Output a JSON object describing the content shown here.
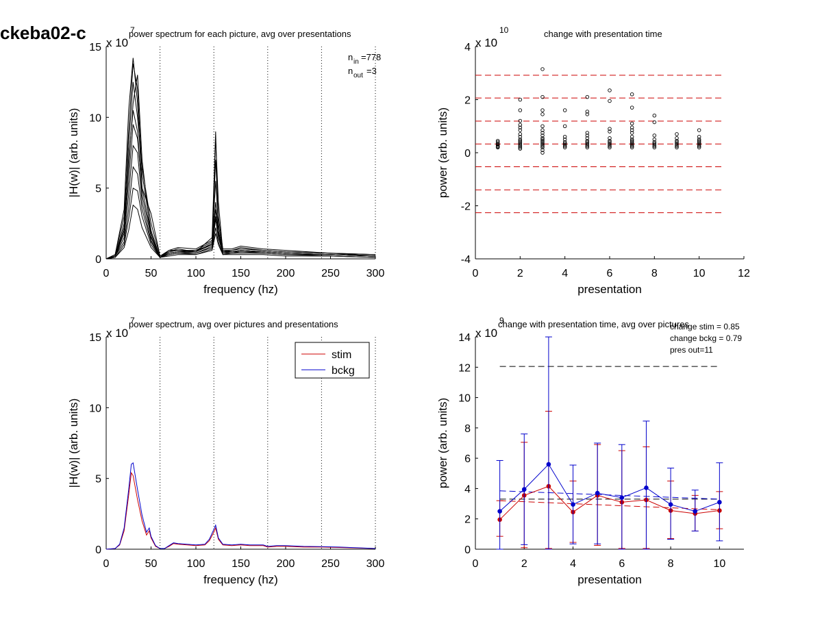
{
  "figure": {
    "title": "ckeba02-c"
  },
  "chart_data": [
    {
      "id": "tl",
      "type": "line",
      "title": "power spectrum for each picture, avg over presentations",
      "xlabel": "frequency (hz)",
      "ylabel": "|H(w)| (arb. units)",
      "exponent_label": "x 10",
      "exponent": "7",
      "xlim": [
        0,
        300
      ],
      "ylim": [
        0,
        15
      ],
      "xticks": [
        "0",
        "50",
        "100",
        "150",
        "200",
        "250",
        "300"
      ],
      "yticks": [
        "0",
        "5",
        "10",
        "15"
      ],
      "vlines": [
        60,
        120,
        180,
        240,
        300
      ],
      "annotation": {
        "n_in_label": "n",
        "n_in_sub": "in",
        "n_in_value": "=778",
        "n_out_label": "n",
        "n_out_sub": "out",
        "n_out_value": "=3"
      },
      "series_color": "#000000",
      "curves": [
        {
          "x": [
            0,
            10,
            20,
            25,
            30,
            35,
            40,
            50,
            60,
            70,
            80,
            100,
            118,
            122,
            125,
            130,
            140,
            150,
            175,
            200,
            250,
            300
          ],
          "y": [
            0,
            0.2,
            2.5,
            9.0,
            13.8,
            12.0,
            6.0,
            2.0,
            0.1,
            0.6,
            0.6,
            0.6,
            1.2,
            3.0,
            1.5,
            0.6,
            0.6,
            0.7,
            0.6,
            0.5,
            0.4,
            0.2
          ]
        },
        {
          "x": [
            0,
            10,
            20,
            25,
            30,
            35,
            40,
            50,
            60,
            70,
            80,
            100,
            118,
            122,
            125,
            130,
            140,
            150,
            175,
            200,
            250,
            300
          ],
          "y": [
            0,
            0.3,
            3.5,
            10.5,
            14.2,
            11.0,
            5.0,
            3.2,
            0.2,
            0.5,
            0.7,
            0.5,
            1.5,
            9.0,
            2.0,
            0.6,
            0.5,
            0.6,
            0.5,
            0.4,
            0.3,
            0.2
          ]
        },
        {
          "x": [
            0,
            10,
            20,
            25,
            30,
            35,
            40,
            50,
            60,
            70,
            80,
            100,
            118,
            122,
            125,
            130,
            140,
            150,
            175,
            200,
            250,
            300
          ],
          "y": [
            0,
            0.2,
            2.0,
            6.5,
            11.0,
            13.0,
            7.0,
            1.5,
            0.1,
            0.4,
            0.5,
            0.6,
            1.0,
            8.5,
            4.0,
            0.5,
            0.6,
            0.8,
            0.6,
            0.5,
            0.4,
            0.3
          ]
        },
        {
          "x": [
            0,
            10,
            20,
            25,
            30,
            35,
            40,
            50,
            60,
            70,
            80,
            100,
            118,
            122,
            125,
            130,
            140,
            150,
            175,
            200,
            250,
            300
          ],
          "y": [
            0,
            0.3,
            3.0,
            8.0,
            12.5,
            10.0,
            6.5,
            2.5,
            0.2,
            0.6,
            0.8,
            0.7,
            1.3,
            7.0,
            3.0,
            0.7,
            0.7,
            0.9,
            0.7,
            0.6,
            0.4,
            0.3
          ]
        },
        {
          "x": [
            0,
            10,
            20,
            25,
            30,
            35,
            40,
            50,
            60,
            70,
            80,
            100,
            118,
            122,
            125,
            130,
            140,
            150,
            175,
            200,
            250,
            300
          ],
          "y": [
            0,
            0.2,
            1.8,
            5.5,
            9.5,
            8.5,
            5.0,
            1.8,
            0.1,
            0.5,
            0.6,
            0.5,
            1.1,
            5.5,
            2.5,
            0.5,
            0.5,
            0.6,
            0.5,
            0.4,
            0.3,
            0.2
          ]
        },
        {
          "x": [
            0,
            10,
            20,
            25,
            30,
            35,
            40,
            50,
            60,
            70,
            80,
            100,
            118,
            122,
            125,
            130,
            140,
            150,
            175,
            200,
            250,
            300
          ],
          "y": [
            0,
            0.2,
            2.2,
            7.0,
            10.5,
            9.0,
            4.5,
            1.6,
            0.1,
            0.4,
            0.5,
            0.5,
            1.0,
            4.0,
            2.0,
            0.5,
            0.5,
            0.6,
            0.5,
            0.4,
            0.3,
            0.2
          ]
        },
        {
          "x": [
            0,
            10,
            20,
            25,
            30,
            35,
            40,
            50,
            60,
            70,
            80,
            100,
            118,
            122,
            125,
            130,
            140,
            150,
            175,
            200,
            250,
            300
          ],
          "y": [
            0,
            0.2,
            1.5,
            4.5,
            8.0,
            7.5,
            4.0,
            1.3,
            0.1,
            0.4,
            0.5,
            0.4,
            0.9,
            3.5,
            1.8,
            0.4,
            0.5,
            0.5,
            0.5,
            0.4,
            0.3,
            0.2
          ]
        },
        {
          "x": [
            0,
            10,
            20,
            25,
            30,
            35,
            40,
            50,
            60,
            70,
            80,
            100,
            118,
            122,
            125,
            130,
            140,
            150,
            175,
            200,
            250,
            300
          ],
          "y": [
            0,
            0.2,
            1.2,
            3.5,
            6.5,
            6.0,
            3.5,
            1.2,
            0.1,
            0.3,
            0.4,
            0.4,
            0.8,
            2.8,
            1.5,
            0.4,
            0.4,
            0.5,
            0.4,
            0.3,
            0.3,
            0.2
          ]
        },
        {
          "x": [
            0,
            10,
            20,
            25,
            30,
            35,
            40,
            50,
            60,
            70,
            80,
            100,
            118,
            122,
            125,
            130,
            140,
            150,
            175,
            200,
            250,
            300
          ],
          "y": [
            0,
            0.1,
            1.0,
            2.8,
            5.0,
            4.8,
            3.0,
            1.0,
            0.1,
            0.3,
            0.4,
            0.3,
            0.7,
            2.2,
            1.2,
            0.3,
            0.4,
            0.4,
            0.4,
            0.3,
            0.2,
            0.1
          ]
        },
        {
          "x": [
            0,
            10,
            20,
            25,
            30,
            35,
            40,
            50,
            60,
            70,
            80,
            100,
            118,
            122,
            125,
            130,
            140,
            150,
            175,
            200,
            250,
            300
          ],
          "y": [
            0,
            0.1,
            0.8,
            2.0,
            3.8,
            3.5,
            2.2,
            0.8,
            0.1,
            0.2,
            0.3,
            0.3,
            0.6,
            1.8,
            1.0,
            0.3,
            0.3,
            0.3,
            0.3,
            0.2,
            0.2,
            0.1
          ]
        }
      ]
    },
    {
      "id": "tr",
      "type": "scatter",
      "title": "change with presentation time",
      "xlabel": "presentation",
      "ylabel": "power (arb. units)",
      "exponent_label": "x 10",
      "exponent": "10",
      "xlim": [
        0,
        12
      ],
      "ylim": [
        -4,
        4
      ],
      "xticks": [
        "0",
        "2",
        "4",
        "6",
        "8",
        "10",
        "12"
      ],
      "yticks": [
        "-4",
        "-2",
        "0",
        "2",
        "4"
      ],
      "hlines": [
        2.92,
        2.06,
        1.19,
        0.33,
        -0.53,
        -1.4,
        -2.26
      ],
      "hline_x_range": [
        0,
        11
      ],
      "hline_color": "#cc0000",
      "points": [
        {
          "x": 1,
          "y": [
            0.2,
            0.25,
            0.3,
            0.35,
            0.4,
            0.45,
            0.3,
            0.22
          ]
        },
        {
          "x": 2,
          "y": [
            2.0,
            1.6,
            1.2,
            1.05,
            0.95,
            0.85,
            0.7,
            0.6,
            0.5,
            0.45,
            0.4,
            0.35,
            0.3,
            0.25,
            0.2,
            0.15
          ]
        },
        {
          "x": 3,
          "y": [
            3.15,
            2.1,
            1.6,
            1.45,
            1.0,
            0.85,
            0.75,
            0.65,
            0.55,
            0.5,
            0.45,
            0.4,
            0.35,
            0.3,
            0.25,
            0.2,
            0.1,
            0.0
          ]
        },
        {
          "x": 4,
          "y": [
            1.6,
            1.0,
            0.6,
            0.5,
            0.4,
            0.35,
            0.3,
            0.25,
            0.2
          ]
        },
        {
          "x": 5,
          "y": [
            2.1,
            1.55,
            1.45,
            0.75,
            0.65,
            0.55,
            0.45,
            0.4,
            0.35,
            0.3,
            0.25,
            0.2
          ]
        },
        {
          "x": 6,
          "y": [
            2.35,
            1.95,
            0.9,
            0.8,
            0.55,
            0.45,
            0.4,
            0.35,
            0.3,
            0.25,
            0.2
          ]
        },
        {
          "x": 7,
          "y": [
            2.2,
            1.7,
            1.1,
            0.95,
            0.85,
            0.75,
            0.6,
            0.5,
            0.45,
            0.4,
            0.35,
            0.3,
            0.25,
            0.2
          ]
        },
        {
          "x": 8,
          "y": [
            1.4,
            1.15,
            0.65,
            0.5,
            0.4,
            0.35,
            0.3,
            0.25,
            0.2
          ]
        },
        {
          "x": 9,
          "y": [
            0.7,
            0.55,
            0.45,
            0.4,
            0.35,
            0.3,
            0.25,
            0.2
          ]
        },
        {
          "x": 10,
          "y": [
            0.85,
            0.6,
            0.5,
            0.45,
            0.4,
            0.35,
            0.3,
            0.25,
            0.2
          ]
        }
      ]
    },
    {
      "id": "bl",
      "type": "line",
      "title": "power spectrum, avg over pictures and presentations",
      "xlabel": "frequency (hz)",
      "ylabel": "|H(w)| (arb. units)",
      "exponent_label": "x 10",
      "exponent": "7",
      "xlim": [
        0,
        300
      ],
      "ylim": [
        0,
        15
      ],
      "xticks": [
        "0",
        "50",
        "100",
        "150",
        "200",
        "250",
        "300"
      ],
      "yticks": [
        "0",
        "5",
        "10",
        "15"
      ],
      "vlines": [
        60,
        120,
        180,
        240,
        300
      ],
      "legend": {
        "position": "top-right"
      },
      "series": [
        {
          "name": "stim",
          "color": "#cc0000",
          "x": [
            0,
            10,
            15,
            20,
            25,
            28,
            30,
            35,
            40,
            45,
            48,
            50,
            55,
            60,
            65,
            70,
            75,
            80,
            90,
            100,
            110,
            115,
            120,
            122,
            125,
            130,
            140,
            150,
            160,
            175,
            180,
            190,
            200,
            220,
            240,
            260,
            280,
            300
          ],
          "y": [
            0,
            0.05,
            0.3,
            1.3,
            3.8,
            5.4,
            5.2,
            3.5,
            2.0,
            1.0,
            1.3,
            0.8,
            0.2,
            0.05,
            0.05,
            0.2,
            0.4,
            0.35,
            0.3,
            0.25,
            0.3,
            0.6,
            1.2,
            1.5,
            0.7,
            0.3,
            0.25,
            0.3,
            0.25,
            0.25,
            0.15,
            0.2,
            0.2,
            0.15,
            0.15,
            0.12,
            0.08,
            0.05
          ]
        },
        {
          "name": "bckg",
          "color": "#0000cc",
          "x": [
            0,
            10,
            15,
            20,
            25,
            28,
            30,
            35,
            40,
            45,
            48,
            50,
            55,
            60,
            65,
            70,
            75,
            80,
            90,
            100,
            110,
            115,
            120,
            122,
            125,
            130,
            140,
            150,
            160,
            175,
            180,
            190,
            200,
            220,
            240,
            260,
            280,
            300
          ],
          "y": [
            0,
            0.05,
            0.35,
            1.5,
            4.2,
            6.0,
            6.1,
            4.2,
            2.4,
            1.2,
            1.5,
            0.9,
            0.25,
            0.05,
            0.05,
            0.25,
            0.45,
            0.4,
            0.35,
            0.3,
            0.35,
            0.7,
            1.4,
            1.7,
            0.8,
            0.35,
            0.3,
            0.35,
            0.3,
            0.3,
            0.2,
            0.25,
            0.25,
            0.2,
            0.18,
            0.15,
            0.1,
            0.05
          ]
        }
      ]
    },
    {
      "id": "br",
      "type": "line",
      "title": "change with presentation time, avg over pictures",
      "xlabel": "presentation",
      "ylabel": "power (arb. units)",
      "exponent_label": "x 10",
      "exponent": "9",
      "xlim": [
        0,
        11
      ],
      "ylim": [
        0,
        14
      ],
      "xticks": [
        "0",
        "2",
        "4",
        "6",
        "8",
        "10"
      ],
      "yticks": [
        "0",
        "2",
        "4",
        "6",
        "8",
        "10",
        "12",
        "14"
      ],
      "annotation": [
        "change stim = 0.85",
        "change bckg = 0.79",
        "pres out=11"
      ],
      "hline_top": 12.05,
      "hline_top_range": [
        1,
        10
      ],
      "ref_lines": [
        {
          "color": "#000000",
          "y": [
            3.3,
            3.3
          ],
          "x": [
            1,
            10
          ]
        },
        {
          "color": "#0000cc",
          "y": [
            3.85,
            3.3
          ],
          "x": [
            1,
            10
          ]
        },
        {
          "color": "#cc0000",
          "y": [
            3.2,
            2.6
          ],
          "x": [
            1,
            10
          ]
        }
      ],
      "series": [
        {
          "name": "stim",
          "color": "#cc0000",
          "x": [
            1,
            2,
            3,
            4,
            5,
            6,
            7,
            8,
            9,
            10
          ],
          "y": [
            1.95,
            3.55,
            4.15,
            2.45,
            3.55,
            3.1,
            3.25,
            2.55,
            2.35,
            2.55
          ],
          "err_lo": [
            0.85,
            0.1,
            0.05,
            0.45,
            0.25,
            0.05,
            0.05,
            0.7,
            1.2,
            1.35
          ],
          "err_hi": [
            3.2,
            7.05,
            9.1,
            4.5,
            6.9,
            6.5,
            6.75,
            4.5,
            3.55,
            3.8
          ]
        },
        {
          "name": "bckg",
          "color": "#0000cc",
          "x": [
            1,
            2,
            3,
            4,
            5,
            6,
            7,
            8,
            9,
            10
          ],
          "y": [
            2.5,
            3.95,
            5.6,
            2.95,
            3.7,
            3.4,
            4.05,
            2.95,
            2.5,
            3.1
          ],
          "err_lo": [
            0,
            0.3,
            0,
            0.35,
            0.35,
            0,
            0,
            0.65,
            1.2,
            0.55
          ],
          "err_hi": [
            5.85,
            7.6,
            14.0,
            5.55,
            7.0,
            6.9,
            8.45,
            5.35,
            3.9,
            5.7
          ]
        }
      ]
    }
  ]
}
